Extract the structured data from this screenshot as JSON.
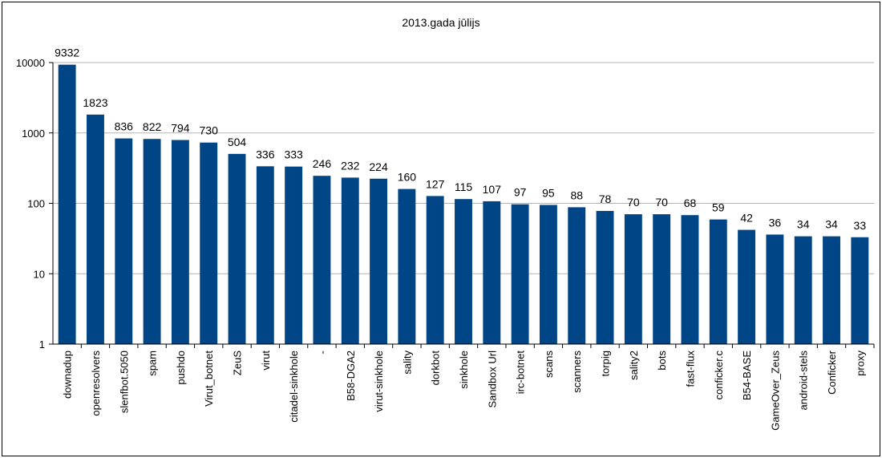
{
  "chart_data": {
    "type": "bar",
    "title": "2013.gada jūlijs",
    "xlabel": "",
    "ylabel": "",
    "yscale": "log",
    "ylim": [
      1,
      10000
    ],
    "yticks": [
      "1",
      "10",
      "100",
      "1000",
      "10000"
    ],
    "grid": true,
    "legend": "none",
    "bar_color": "#004586",
    "categories": [
      "downadup",
      "openresolvers",
      "slenfbot.5050",
      "spam",
      "pushdo",
      "Virut_botnet",
      "ZeuS",
      "virut",
      "citadel-sinkhole",
      "-",
      "B58-DGA2",
      "virut-sinkhole",
      "sality",
      "dorkbot",
      "sinkhole",
      "Sandbox Url",
      "irc-botnet",
      "scans",
      "scanners",
      "torpig",
      "sality2",
      "bots",
      "fast-flux",
      "conficker.c",
      "B54-BASE",
      "GameOver_Zeus",
      "android-stels",
      "Conficker",
      "proxy"
    ],
    "values": [
      9332,
      1823,
      836,
      822,
      794,
      730,
      504,
      336,
      333,
      246,
      232,
      224,
      160,
      127,
      115,
      107,
      97,
      95,
      88,
      78,
      70,
      70,
      68,
      59,
      42,
      36,
      34,
      34,
      33
    ]
  }
}
